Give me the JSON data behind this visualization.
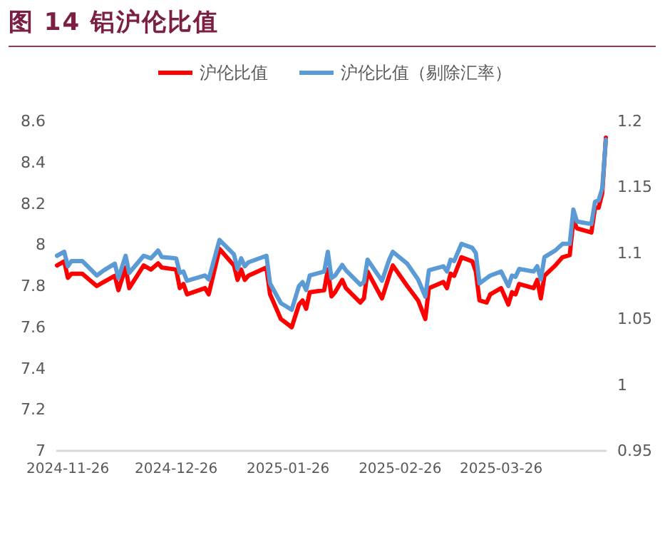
{
  "chart_data": {
    "type": "line",
    "title": "图 14 铝沪伦比值",
    "x": [
      "2024-11-23",
      "2024-11-25",
      "2024-11-26",
      "2024-11-27",
      "2024-11-30",
      "2024-12-04",
      "2024-12-06",
      "2024-12-09",
      "2024-12-10",
      "2024-12-12",
      "2024-12-13",
      "2024-12-17",
      "2024-12-19",
      "2024-12-21",
      "2024-12-22",
      "2024-12-26",
      "2024-12-27",
      "2024-12-28",
      "2024-12-29",
      "2025-01-03",
      "2025-01-04",
      "2025-01-07",
      "2025-01-11",
      "2025-01-12",
      "2025-01-13",
      "2025-01-14",
      "2025-01-15",
      "2025-01-20",
      "2025-01-21",
      "2025-01-24",
      "2025-01-27",
      "2025-01-29",
      "2025-01-30",
      "2025-01-31",
      "2025-02-01",
      "2025-02-05",
      "2025-02-06",
      "2025-02-07",
      "2025-02-08",
      "2025-02-10",
      "2025-02-11",
      "2025-02-15",
      "2025-02-16",
      "2025-02-17",
      "2025-02-21",
      "2025-02-23",
      "2025-02-24",
      "2025-02-28",
      "2025-03-03",
      "2025-03-05",
      "2025-03-06",
      "2025-03-10",
      "2025-03-11",
      "2025-03-12",
      "2025-03-13",
      "2025-03-15",
      "2025-03-18",
      "2025-03-19",
      "2025-03-20",
      "2025-03-22",
      "2025-03-23",
      "2025-03-26",
      "2025-03-28",
      "2025-03-29",
      "2025-03-30",
      "2025-03-31",
      "2025-04-04",
      "2025-04-05",
      "2025-04-06",
      "2025-04-07",
      "2025-04-10",
      "2025-04-12",
      "2025-04-14",
      "2025-04-15",
      "2025-04-16",
      "2025-04-20",
      "2025-04-21",
      "2025-04-22",
      "2025-04-23",
      "2025-04-24"
    ],
    "series": [
      {
        "name": "沪伦比值",
        "color": "#ff0000",
        "values": [
          7.9,
          7.92,
          7.84,
          7.86,
          7.86,
          7.8,
          7.82,
          7.85,
          7.78,
          7.89,
          7.79,
          7.9,
          7.88,
          7.91,
          7.89,
          7.88,
          7.79,
          7.81,
          7.76,
          7.79,
          7.76,
          7.98,
          7.9,
          7.83,
          7.88,
          7.83,
          7.85,
          7.89,
          7.76,
          7.64,
          7.6,
          7.71,
          7.73,
          7.69,
          7.77,
          7.78,
          7.88,
          7.75,
          7.77,
          7.83,
          7.79,
          7.72,
          7.74,
          7.87,
          7.74,
          7.85,
          7.9,
          7.8,
          7.73,
          7.64,
          7.79,
          7.82,
          7.79,
          7.86,
          7.85,
          7.94,
          7.92,
          7.87,
          7.73,
          7.72,
          7.76,
          7.79,
          7.71,
          7.77,
          7.76,
          7.81,
          7.79,
          7.83,
          7.74,
          7.85,
          7.9,
          7.94,
          7.95,
          8.12,
          8.08,
          8.06,
          8.18,
          8.18,
          8.25,
          8.52
        ]
      },
      {
        "name": "沪伦比值（剔除汇率）",
        "color": "#5b9bd5",
        "axis": "y2",
        "values": [
          1.098,
          1.101,
          1.09,
          1.094,
          1.094,
          1.083,
          1.087,
          1.092,
          1.081,
          1.098,
          1.085,
          1.098,
          1.096,
          1.102,
          1.097,
          1.096,
          1.085,
          1.086,
          1.079,
          1.083,
          1.08,
          1.11,
          1.099,
          1.088,
          1.096,
          1.09,
          1.093,
          1.098,
          1.077,
          1.062,
          1.057,
          1.075,
          1.078,
          1.072,
          1.083,
          1.086,
          1.101,
          1.081,
          1.083,
          1.091,
          1.087,
          1.076,
          1.078,
          1.095,
          1.079,
          1.095,
          1.101,
          1.092,
          1.08,
          1.067,
          1.087,
          1.09,
          1.086,
          1.095,
          1.094,
          1.107,
          1.104,
          1.1,
          1.077,
          1.081,
          1.083,
          1.086,
          1.075,
          1.083,
          1.082,
          1.088,
          1.086,
          1.09,
          1.08,
          1.097,
          1.102,
          1.107,
          1.107,
          1.133,
          1.124,
          1.122,
          1.139,
          1.14,
          1.149,
          1.186
        ]
      }
    ],
    "xlim": [
      "2024-11-23",
      "2025-04-24"
    ],
    "xticks": [
      "2024-11-26",
      "2024-12-26",
      "2025-01-26",
      "2025-02-26",
      "2025-03-26"
    ],
    "ylim": [
      7,
      8.6
    ],
    "yticks": [
      7,
      7.2,
      7.4,
      7.6,
      7.8,
      8,
      8.2,
      8.4,
      8.6
    ],
    "y2lim": [
      0.95,
      1.2
    ],
    "y2ticks": [
      0.95,
      1,
      1.05,
      1.1,
      1.15,
      1.2
    ],
    "legend": "top",
    "grid": false,
    "marker": "none",
    "line_style": "solid"
  }
}
